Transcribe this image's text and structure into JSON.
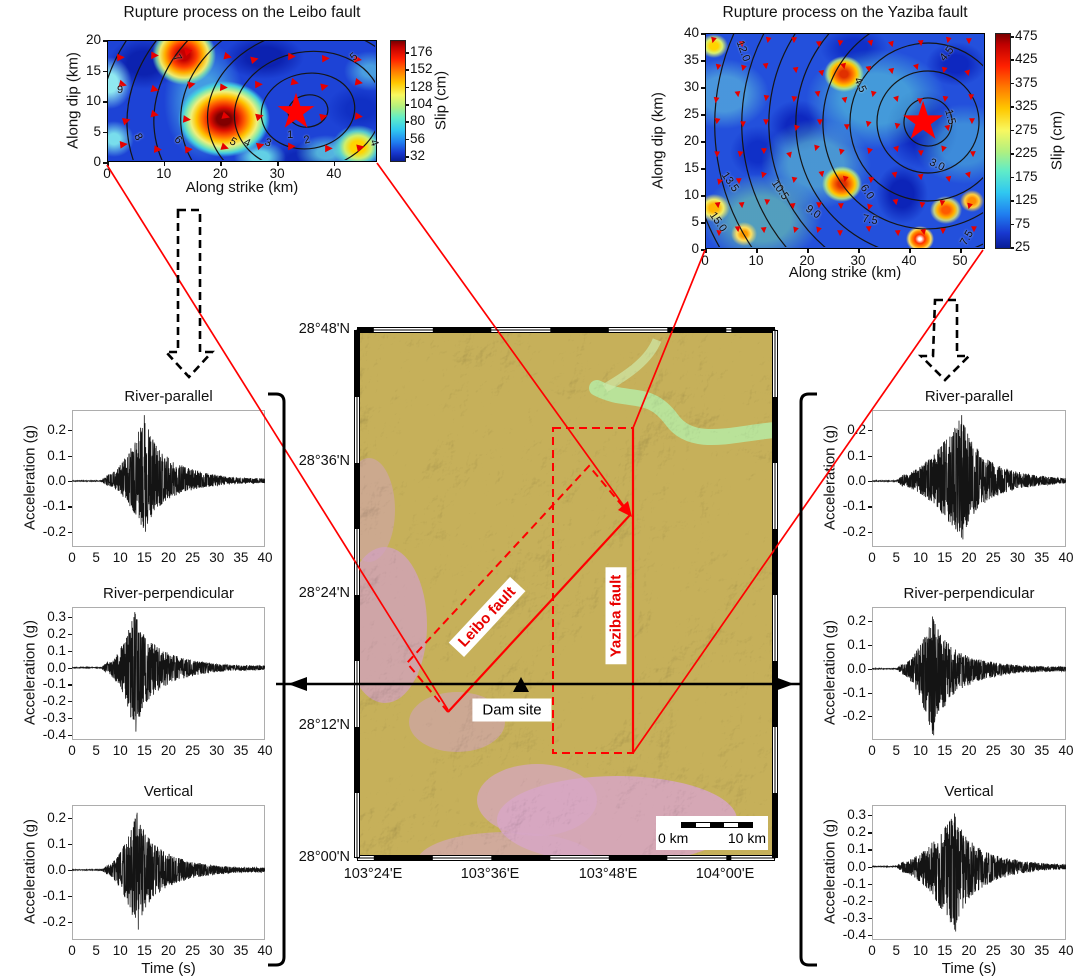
{
  "chart_data": [
    {
      "id": "leibo-slip",
      "type": "heatmap",
      "title": "Rupture process on the Leibo fault",
      "xlabel": "Along strike (km)",
      "ylabel": "Along dip (km)",
      "xlim": [
        0,
        47.6
      ],
      "ylim": [
        0,
        20
      ],
      "xticks": [
        "0",
        "10",
        "20",
        "30",
        "40"
      ],
      "yticks": [
        "20",
        "15",
        "10",
        "5",
        "0"
      ],
      "colorbar": {
        "label": "Slip (cm)",
        "ticks": [
          "176",
          "152",
          "128",
          "104",
          "80",
          "56",
          "32"
        ]
      },
      "epicenter_star": {
        "strike_km": 33,
        "dip_km": 8,
        "glyph": "★"
      },
      "slip_peaks_cm": [
        {
          "strike_km": 20.5,
          "dip_km": 7.5,
          "slip_cm": 180
        },
        {
          "strike_km": 13,
          "dip_km": 17.5,
          "slip_cm": 165
        },
        {
          "strike_km": 44,
          "dip_km": 2.5,
          "slip_cm": 120
        }
      ],
      "contour_meaning": "rupture time (s)",
      "contour_labels": [
        {
          "t": "9",
          "x": 2.3,
          "y": 11.8,
          "rot": 0
        },
        {
          "t": "8",
          "x": 5.5,
          "y": 4.1,
          "rot": 60
        },
        {
          "t": "7",
          "x": 12.3,
          "y": 17.0,
          "rot": 60
        },
        {
          "t": "6",
          "x": 12.5,
          "y": 3.6,
          "rot": 45
        },
        {
          "t": "5",
          "x": 22.2,
          "y": 3.3,
          "rot": 30
        },
        {
          "t": "4",
          "x": 24.7,
          "y": 3.1,
          "rot": 25
        },
        {
          "t": "3",
          "x": 28.4,
          "y": 3.1,
          "rot": 20
        },
        {
          "t": "2",
          "x": 35.3,
          "y": 3.6,
          "rot": -15
        },
        {
          "t": "1",
          "x": 32.3,
          "y": 4.4,
          "rot": 0
        },
        {
          "t": "5",
          "x": 43.6,
          "y": 17.2,
          "rot": -40
        },
        {
          "t": "4",
          "x": 47.0,
          "y": 3.1,
          "rot": 70
        }
      ],
      "arrow_glyph": "▶",
      "arrow_color": "#e60000",
      "arrow_grid": {
        "rows": 4,
        "cols": 8,
        "meaning": "slip direction"
      }
    },
    {
      "id": "yaziba-slip",
      "type": "heatmap",
      "title": "Rupture process on the Yaziba fault",
      "xlabel": "Along strike (km)",
      "ylabel": "Along dip (km)",
      "xlim": [
        0,
        54.9
      ],
      "ylim": [
        0,
        40
      ],
      "xticks": [
        "0",
        "10",
        "20",
        "30",
        "40",
        "50"
      ],
      "yticks": [
        "40",
        "35",
        "30",
        "25",
        "20",
        "15",
        "10",
        "5",
        "0"
      ],
      "colorbar": {
        "label": "Slip (cm)",
        "ticks": [
          "475",
          "425",
          "375",
          "325",
          "275",
          "225",
          "175",
          "125",
          "75",
          "25"
        ]
      },
      "epicenter_star": {
        "strike_km": 42.5,
        "dip_km": 23,
        "glyph": "★"
      },
      "slip_peaks_cm": [
        {
          "strike_km": 27,
          "dip_km": 32,
          "slip_cm": 380
        },
        {
          "strike_km": 27,
          "dip_km": 12,
          "slip_cm": 380
        },
        {
          "strike_km": 42,
          "dip_km": 2,
          "slip_cm": 475
        },
        {
          "strike_km": 47,
          "dip_km": 7.5,
          "slip_cm": 400
        },
        {
          "strike_km": 2,
          "dip_km": 8,
          "slip_cm": 330
        }
      ],
      "contour_meaning": "rupture time (s)",
      "contour_labels": [
        {
          "t": "12.0",
          "x": 7.5,
          "y": 36.7,
          "rot": 70
        },
        {
          "t": "4.5",
          "x": 47.5,
          "y": 36.2,
          "rot": -50
        },
        {
          "t": "4.5",
          "x": 30.4,
          "y": 30.3,
          "rot": 65
        },
        {
          "t": "1.5",
          "x": 48.0,
          "y": 24.4,
          "rot": 75
        },
        {
          "t": "3.0",
          "x": 45.5,
          "y": 15.5,
          "rot": 25
        },
        {
          "t": "13.5",
          "x": 4.9,
          "y": 12.4,
          "rot": 55
        },
        {
          "t": "10.5",
          "x": 14.7,
          "y": 10.9,
          "rot": 55
        },
        {
          "t": "6.0",
          "x": 31.8,
          "y": 10.5,
          "rot": 55
        },
        {
          "t": "9.0",
          "x": 21.2,
          "y": 6.8,
          "rot": 35
        },
        {
          "t": "7.5",
          "x": 32.4,
          "y": 5.4,
          "rot": 10
        },
        {
          "t": "15.0",
          "x": 2.5,
          "y": 5.0,
          "rot": 55
        },
        {
          "t": "7.5",
          "x": 51.4,
          "y": 2.0,
          "rot": -60
        }
      ],
      "arrow_glyph": "▼",
      "arrow_color": "#e60000",
      "arrow_grid": {
        "rows": 8,
        "cols": 11,
        "meaning": "slip direction"
      }
    },
    {
      "id": "location-map",
      "type": "map",
      "lat_ticks": [
        "28°48'N",
        "28°36'N",
        "28°24'N",
        "28°12'N",
        "28°00'N"
      ],
      "lon_ticks": [
        "103°24'E",
        "103°36'E",
        "103°48'E",
        "104°00'E"
      ],
      "fault_boxes": [
        {
          "label": "Leibo fault"
        },
        {
          "label": "Yaziba fault"
        }
      ],
      "dam": {
        "label": "Dam site"
      },
      "scalebar": {
        "left": "0 km",
        "right": "10 km"
      }
    },
    {
      "id": "left-river-parallel",
      "type": "line",
      "group": "left",
      "slot": 0,
      "title": "River-parallel",
      "ylabel": "Acceleration (g)",
      "xlabel": "",
      "xlim": [
        0,
        40
      ],
      "xticks": [
        "0",
        "5",
        "10",
        "15",
        "20",
        "25",
        "30",
        "35",
        "40"
      ],
      "ylim": [
        -0.26,
        0.28
      ],
      "yticks": [
        "0.2",
        "0.1",
        "0.0",
        "-0.1",
        "-0.2"
      ],
      "peak_accel_g": 0.26,
      "min_accel_g": -0.2,
      "peak_time_s": 15,
      "onset_time_s": 6,
      "duration_s": 40,
      "seed": 11
    },
    {
      "id": "left-river-perpendicular",
      "type": "line",
      "group": "left",
      "slot": 1,
      "title": "River-perpendicular",
      "ylabel": "Acceleration (g)",
      "xlabel": "",
      "xlim": [
        0,
        40
      ],
      "xticks": [
        "0",
        "5",
        "10",
        "15",
        "20",
        "25",
        "30",
        "35",
        "40"
      ],
      "ylim": [
        -0.43,
        0.36
      ],
      "yticks": [
        "0.3",
        "0.2",
        "0.1",
        "0.0",
        "-0.1",
        "-0.2",
        "-0.3",
        "-0.4"
      ],
      "peak_accel_g": 0.33,
      "min_accel_g": -0.38,
      "peak_time_s": 13,
      "onset_time_s": 6,
      "duration_s": 40,
      "seed": 22
    },
    {
      "id": "left-vertical",
      "type": "line",
      "group": "left",
      "slot": 2,
      "title": "Vertical",
      "ylabel": "Acceleration (g)",
      "xlabel": "Time (s)",
      "xlim": [
        0,
        40
      ],
      "xticks": [
        "0",
        "5",
        "10",
        "15",
        "20",
        "25",
        "30",
        "35",
        "40"
      ],
      "ylim": [
        -0.27,
        0.25
      ],
      "yticks": [
        "0.2",
        "0.1",
        "0.0",
        "-0.1",
        "-0.2"
      ],
      "peak_accel_g": 0.22,
      "min_accel_g": -0.23,
      "peak_time_s": 13.5,
      "onset_time_s": 6,
      "duration_s": 40,
      "seed": 33
    },
    {
      "id": "right-river-parallel",
      "type": "line",
      "group": "right",
      "slot": 0,
      "title": "River-parallel",
      "ylabel": "Acceleration (g)",
      "xlabel": "",
      "xlim": [
        0,
        40
      ],
      "xticks": [
        "0",
        "5",
        "10",
        "15",
        "20",
        "25",
        "30",
        "35",
        "40"
      ],
      "ylim": [
        -0.26,
        0.28
      ],
      "yticks": [
        "0.2",
        "0.1",
        "0.0",
        "-0.1",
        "-0.2"
      ],
      "peak_accel_g": 0.26,
      "min_accel_g": -0.23,
      "peak_time_s": 18.5,
      "onset_time_s": 5,
      "duration_s": 40,
      "seed": 44
    },
    {
      "id": "right-river-perpendicular",
      "type": "line",
      "group": "right",
      "slot": 1,
      "title": "River-perpendicular",
      "ylabel": "Acceleration (g)",
      "xlabel": "",
      "xlim": [
        0,
        40
      ],
      "xticks": [
        "0",
        "5",
        "10",
        "15",
        "20",
        "25",
        "30",
        "35",
        "40"
      ],
      "ylim": [
        -0.3,
        0.26
      ],
      "yticks": [
        "0.2",
        "0.1",
        "0.0",
        "-0.1",
        "-0.2"
      ],
      "peak_accel_g": 0.22,
      "min_accel_g": -0.28,
      "peak_time_s": 12.5,
      "onset_time_s": 5,
      "duration_s": 40,
      "seed": 55
    },
    {
      "id": "right-vertical",
      "type": "line",
      "group": "right",
      "slot": 2,
      "title": "Vertical",
      "ylabel": "Acceleration (g)",
      "xlabel": "Time (s)",
      "xlim": [
        0,
        40
      ],
      "xticks": [
        "0",
        "5",
        "10",
        "15",
        "20",
        "25",
        "30",
        "35",
        "40"
      ],
      "ylim": [
        -0.43,
        0.36
      ],
      "yticks": [
        "0.3",
        "0.2",
        "0.1",
        "0.0",
        "-0.1",
        "-0.2",
        "-0.3",
        "-0.4"
      ],
      "peak_accel_g": 0.31,
      "min_accel_g": -0.38,
      "peak_time_s": 17,
      "onset_time_s": 5,
      "duration_s": 40,
      "seed": 66
    }
  ],
  "colors": {
    "fault_red": "#ff0000",
    "annotation_black": "#000000",
    "trace_black": "#141414"
  }
}
